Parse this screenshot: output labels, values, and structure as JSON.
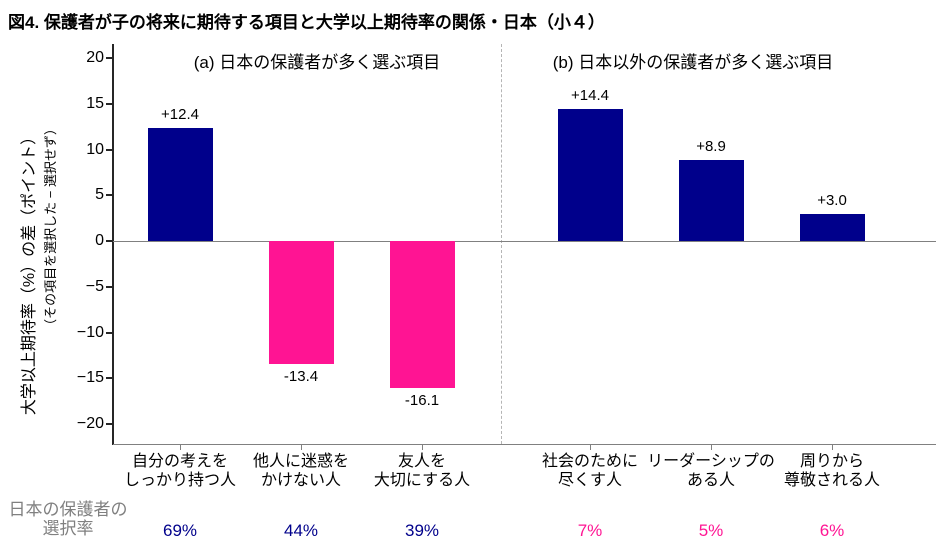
{
  "title": "図4. 保護者が子の将来に期待する項目と大学以上期待率の関係・日本（小４）",
  "y_axis": {
    "label": "大学以上期待率（%）の差（ポイント）",
    "sublabel": "（その項目を選択した − 選択せず）",
    "ticks": [
      {
        "value": 20,
        "label": "20"
      },
      {
        "value": 15,
        "label": "15"
      },
      {
        "value": 10,
        "label": "10"
      },
      {
        "value": 5,
        "label": "5"
      },
      {
        "value": 0,
        "label": "0"
      },
      {
        "value": -5,
        "label": "−5"
      },
      {
        "value": -10,
        "label": "−10"
      },
      {
        "value": -15,
        "label": "−15"
      },
      {
        "value": -20,
        "label": "−20"
      }
    ]
  },
  "selection_row": {
    "line1": "日本の保護者の",
    "line2": "選択率"
  },
  "colors": {
    "positive_bar": "#00008B",
    "negative_bar": "#FF1493",
    "panel_a_rate_text": "#00008B",
    "panel_b_rate_text": "#FF1493",
    "axis_line": "#808080",
    "spine": "#262626",
    "divider": "#B5B5B5",
    "muted_text": "#808080"
  },
  "chart_data": {
    "type": "bar",
    "ylabel": "大学以上期待率（%）の差（ポイント）",
    "ylabel_note": "（その項目を選択した − 選択せず）",
    "ylim": [
      -22.2,
      21.5
    ],
    "grid": false,
    "panels": [
      {
        "id": "a",
        "title": "(a) 日本の保護者が多く選ぶ項目",
        "rate_color": "#00008B",
        "bars": [
          {
            "category": [
              "自分の考えを",
              "しっかり持つ人"
            ],
            "value": 12.4,
            "value_label": "+12.4",
            "selection_rate": "69%"
          },
          {
            "category": [
              "他人に迷惑を",
              "かけない人"
            ],
            "value": -13.4,
            "value_label": "-13.4",
            "selection_rate": "44%"
          },
          {
            "category": [
              "友人を",
              "大切にする人"
            ],
            "value": -16.1,
            "value_label": "-16.1",
            "selection_rate": "39%"
          }
        ]
      },
      {
        "id": "b",
        "title": "(b) 日本以外の保護者が多く選ぶ項目",
        "rate_color": "#FF1493",
        "bars": [
          {
            "category": [
              "社会のために",
              "尽くす人"
            ],
            "value": 14.4,
            "value_label": "+14.4",
            "selection_rate": "7%"
          },
          {
            "category": [
              "リーダーシップの",
              "ある人"
            ],
            "value": 8.9,
            "value_label": "+8.9",
            "selection_rate": "5%"
          },
          {
            "category": [
              "周りから",
              "尊敬される人"
            ],
            "value": 3.0,
            "value_label": "+3.0",
            "selection_rate": "6%"
          }
        ]
      }
    ]
  }
}
